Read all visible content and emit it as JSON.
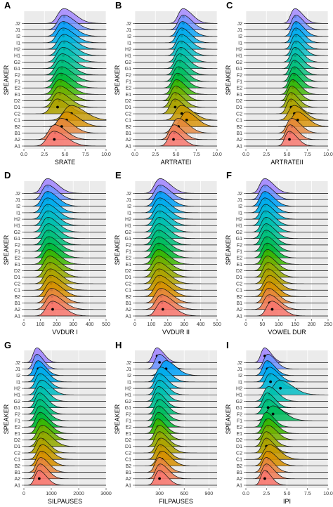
{
  "speakers": [
    "A1",
    "A2",
    "B1",
    "B2",
    "C1",
    "C2",
    "D1",
    "D2",
    "E1",
    "E2",
    "F1",
    "F2",
    "G1",
    "G2",
    "H1",
    "H2",
    "I1",
    "I2",
    "J1",
    "J2"
  ],
  "colors": [
    "#F8766D",
    "#F07E58",
    "#E6873C",
    "#D89000",
    "#C59900",
    "#AEA200",
    "#94AA00",
    "#72B000",
    "#3BB600",
    "#00B935",
    "#00BC5C",
    "#00BF7A",
    "#00C094",
    "#00C0AC",
    "#00BCC3",
    "#00B6D8",
    "#00ADEA",
    "#00A1F8",
    "#6F93FF",
    "#A287FF"
  ],
  "chart_data": [
    {
      "type": "ridgeline",
      "panel": "A",
      "xlabel": "SRATE",
      "ylabel": "SPEAKER",
      "xlim": [
        0,
        10
      ],
      "xticks": [
        "0.0",
        "2.5",
        "5.0",
        "7.5",
        "10.0"
      ],
      "xtick_values": [
        0,
        2.5,
        5,
        7.5,
        10
      ],
      "means": [
        3.7,
        3.8,
        4.6,
        5.2,
        5.8,
        4.1,
        4.3,
        4.4,
        4.4,
        4.5,
        4.6,
        4.6,
        4.7,
        4.8,
        4.9,
        4.9,
        4.8,
        4.8,
        4.9,
        4.9
      ],
      "sds": [
        1.1,
        1.0,
        1.0,
        1.1,
        1.2,
        1.0,
        1.0,
        1.0,
        1.0,
        1.0,
        1.0,
        1.0,
        1.0,
        1.0,
        1.0,
        1.0,
        1.0,
        1.0,
        1.0,
        1.0
      ]
    },
    {
      "type": "ridgeline",
      "panel": "B",
      "xlabel": "ARTRATEI",
      "ylabel": "SPEAKER",
      "xlim": [
        0,
        10
      ],
      "xticks": [
        "0.0",
        "2.5",
        "5.0",
        "7.5",
        "10.0"
      ],
      "xtick_values": [
        0,
        2.5,
        5,
        7.5,
        10
      ],
      "means": [
        4.7,
        4.8,
        5.3,
        6.3,
        5.7,
        4.9,
        4.9,
        5.0,
        5.1,
        5.2,
        5.3,
        5.4,
        5.5,
        5.6,
        5.6,
        5.7,
        5.7,
        5.8,
        5.9,
        5.9
      ],
      "sds": [
        0.8,
        0.8,
        0.9,
        0.9,
        1.0,
        0.8,
        0.8,
        0.8,
        0.8,
        0.8,
        0.8,
        0.8,
        0.8,
        0.8,
        0.8,
        0.8,
        0.8,
        0.8,
        0.8,
        0.8
      ]
    },
    {
      "type": "ridgeline",
      "panel": "C",
      "xlabel": "ARTRATEII",
      "ylabel": "SPEAKER",
      "xlim": [
        0,
        10
      ],
      "xticks": [
        "0.0",
        "2.5",
        "5.0",
        "7.5",
        "10.0"
      ],
      "xtick_values": [
        0,
        2.5,
        5,
        7.5,
        10
      ],
      "means": [
        5.3,
        5.4,
        5.6,
        6.3,
        5.9,
        5.5,
        5.5,
        5.6,
        5.7,
        5.8,
        5.9,
        5.9,
        6.0,
        6.0,
        6.1,
        6.1,
        6.1,
        6.1,
        6.1,
        6.0
      ],
      "sds": [
        0.7,
        0.7,
        0.8,
        0.9,
        0.9,
        0.7,
        0.7,
        0.7,
        0.7,
        0.7,
        0.7,
        0.7,
        0.7,
        0.7,
        0.7,
        0.7,
        0.7,
        0.7,
        0.7,
        0.7
      ]
    },
    {
      "type": "ridgeline",
      "panel": "D",
      "xlabel": "VVDUR I",
      "ylabel": "SPEAKER",
      "xlim": [
        0,
        500
      ],
      "xticks": [
        "0",
        "100",
        "200",
        "300",
        "400",
        "500"
      ],
      "xtick_values": [
        0,
        100,
        200,
        300,
        400,
        500
      ],
      "means": [
        175,
        172,
        170,
        168,
        165,
        162,
        160,
        158,
        155,
        155,
        152,
        150,
        150,
        148,
        148,
        146,
        145,
        145,
        145,
        145
      ],
      "sds": [
        50,
        50,
        48,
        48,
        48,
        47,
        47,
        46,
        46,
        46,
        45,
        45,
        45,
        45,
        45,
        45,
        45,
        45,
        45,
        45
      ]
    },
    {
      "type": "ridgeline",
      "panel": "E",
      "xlabel": "VVDUR II",
      "ylabel": "SPEAKER",
      "xlim": [
        0,
        500
      ],
      "xticks": [
        "0",
        "100",
        "200",
        "300",
        "400",
        "500"
      ],
      "xtick_values": [
        0,
        100,
        200,
        300,
        400,
        500
      ],
      "means": [
        170,
        165,
        160,
        155,
        150,
        148,
        146,
        145,
        145,
        145,
        145,
        145,
        148,
        150,
        150,
        152,
        152,
        155,
        155,
        155
      ],
      "sds": [
        50,
        50,
        48,
        48,
        48,
        47,
        47,
        46,
        46,
        46,
        45,
        45,
        45,
        45,
        45,
        45,
        45,
        45,
        45,
        45
      ]
    },
    {
      "type": "ridgeline",
      "panel": "F",
      "xlabel": "VOWEL DUR",
      "ylabel": "SPEAKER",
      "xlim": [
        0,
        250
      ],
      "xticks": [
        "0",
        "50",
        "100",
        "150",
        "200",
        "250"
      ],
      "xtick_values": [
        0,
        50,
        100,
        150,
        200,
        250
      ],
      "means": [
        80,
        72,
        70,
        70,
        72,
        68,
        68,
        66,
        66,
        65,
        64,
        62,
        62,
        62,
        60,
        60,
        58,
        58,
        58,
        58
      ],
      "sds": [
        22,
        22,
        21,
        21,
        21,
        20,
        20,
        20,
        20,
        20,
        20,
        20,
        20,
        20,
        20,
        20,
        20,
        20,
        20,
        20
      ]
    },
    {
      "type": "ridgeline",
      "panel": "G",
      "xlabel": "SILPAUSES",
      "ylabel": "SPEAKER",
      "xlim": [
        0,
        3000
      ],
      "xticks": [
        "0",
        "1000",
        "2000",
        "3000"
      ],
      "xtick_values": [
        0,
        1000,
        2000,
        3000
      ],
      "means": [
        560,
        600,
        620,
        650,
        680,
        620,
        700,
        680,
        650,
        600,
        600,
        580,
        580,
        600,
        650,
        600,
        600,
        520,
        480,
        480
      ],
      "sds": [
        200,
        210,
        220,
        230,
        240,
        230,
        260,
        250,
        240,
        220,
        220,
        210,
        210,
        220,
        240,
        220,
        220,
        200,
        180,
        180
      ]
    },
    {
      "type": "ridgeline",
      "panel": "H",
      "xlabel": "FILPAUSES",
      "ylabel": "SPEAKER",
      "xlim": [
        0,
        1000
      ],
      "xticks": [
        "300",
        "600",
        "900"
      ],
      "xtick_values": [
        300,
        600,
        900
      ],
      "means": [
        300,
        310,
        300,
        330,
        310,
        320,
        300,
        300,
        280,
        290,
        290,
        300,
        280,
        290,
        300,
        300,
        320,
        380,
        300,
        270
      ],
      "sds": [
        70,
        75,
        72,
        80,
        75,
        80,
        72,
        72,
        68,
        70,
        70,
        72,
        68,
        70,
        72,
        72,
        80,
        90,
        72,
        65
      ]
    },
    {
      "type": "ridgeline",
      "panel": "I",
      "xlabel": "IPI",
      "ylabel": "SPEAKER",
      "xlim": [
        0,
        10
      ],
      "xticks": [
        "0.0",
        "2.5",
        "5.0",
        "7.5",
        "10.0"
      ],
      "xtick_values": [
        0,
        2.5,
        5,
        7.5,
        10
      ],
      "means": [
        2.3,
        2.5,
        2.5,
        2.7,
        2.9,
        2.5,
        2.5,
        2.7,
        2.7,
        2.5,
        3.3,
        2.7,
        2.6,
        2.8,
        4.2,
        3.0,
        2.9,
        2.6,
        2.7,
        2.3
      ],
      "sds": [
        0.6,
        0.7,
        0.7,
        0.8,
        0.9,
        0.7,
        0.7,
        0.8,
        0.8,
        0.7,
        1.0,
        0.8,
        0.7,
        0.8,
        1.1,
        0.8,
        0.8,
        0.7,
        0.7,
        0.6
      ]
    }
  ]
}
